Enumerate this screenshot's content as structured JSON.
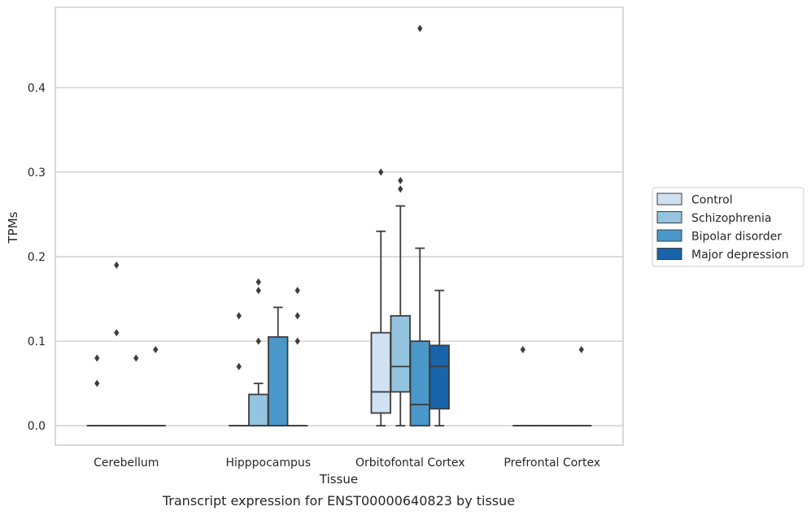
{
  "chart_data": {
    "type": "box",
    "title": "",
    "caption": "Transcript expression for ENST00000640823 by tissue",
    "xlabel": "Tissue",
    "ylabel": "TPMs",
    "ylim": [
      -0.023,
      0.495
    ],
    "yticks": [
      0.0,
      0.1,
      0.2,
      0.3,
      0.4
    ],
    "ytick_labels": [
      "0.0",
      "0.1",
      "0.2",
      "0.3",
      "0.4"
    ],
    "grid": "horizontal",
    "legend_position": "right",
    "categories": [
      "Cerebellum",
      "Hipppocampus",
      "Orbitofontal Cortex",
      "Prefrontal Cortex"
    ],
    "series": [
      {
        "name": "Control",
        "color": "#d0e1f2",
        "boxes": [
          {
            "q1": 0,
            "median": 0,
            "q3": 0,
            "whislo": 0,
            "whishi": 0,
            "fliers": [
              0.08,
              0.05
            ]
          },
          {
            "q1": 0,
            "median": 0,
            "q3": 0,
            "whislo": 0,
            "whishi": 0,
            "fliers": [
              0.13,
              0.07
            ]
          },
          {
            "q1": 0.015,
            "median": 0.04,
            "q3": 0.11,
            "whislo": 0,
            "whishi": 0.23,
            "fliers": [
              0.3
            ]
          },
          {
            "q1": 0,
            "median": 0,
            "q3": 0,
            "whislo": 0,
            "whishi": 0,
            "fliers": [
              0.09
            ]
          }
        ]
      },
      {
        "name": "Schizophrenia",
        "color": "#94c4df",
        "boxes": [
          {
            "q1": 0,
            "median": 0,
            "q3": 0,
            "whislo": 0,
            "whishi": 0,
            "fliers": [
              0.11,
              0.19
            ]
          },
          {
            "q1": 0,
            "median": 0,
            "q3": 0.037,
            "whislo": 0,
            "whishi": 0.05,
            "fliers": [
              0.17,
              0.16,
              0.1
            ]
          },
          {
            "q1": 0.04,
            "median": 0.07,
            "q3": 0.13,
            "whislo": 0,
            "whishi": 0.26,
            "fliers": [
              0.29,
              0.28
            ]
          },
          {
            "q1": 0,
            "median": 0,
            "q3": 0,
            "whislo": 0,
            "whishi": 0,
            "fliers": []
          }
        ]
      },
      {
        "name": "Bipolar disorder",
        "color": "#4a98c9",
        "boxes": [
          {
            "q1": 0,
            "median": 0,
            "q3": 0,
            "whislo": 0,
            "whishi": 0,
            "fliers": [
              0.08
            ]
          },
          {
            "q1": 0,
            "median": 0,
            "q3": 0.105,
            "whislo": 0,
            "whishi": 0.14,
            "fliers": []
          },
          {
            "q1": 0,
            "median": 0.025,
            "q3": 0.1,
            "whislo": 0,
            "whishi": 0.21,
            "fliers": [
              0.47
            ]
          },
          {
            "q1": 0,
            "median": 0,
            "q3": 0,
            "whislo": 0,
            "whishi": 0,
            "fliers": []
          }
        ]
      },
      {
        "name": "Major depression",
        "color": "#1764ab",
        "boxes": [
          {
            "q1": 0,
            "median": 0,
            "q3": 0,
            "whislo": 0,
            "whishi": 0,
            "fliers": [
              0.09
            ]
          },
          {
            "q1": 0,
            "median": 0,
            "q3": 0,
            "whislo": 0,
            "whishi": 0,
            "fliers": [
              0.16,
              0.13,
              0.1
            ]
          },
          {
            "q1": 0.02,
            "median": 0.07,
            "q3": 0.095,
            "whislo": 0,
            "whishi": 0.16,
            "fliers": []
          },
          {
            "q1": 0,
            "median": 0,
            "q3": 0,
            "whislo": 0,
            "whishi": 0,
            "fliers": [
              0.09
            ]
          }
        ]
      }
    ]
  }
}
